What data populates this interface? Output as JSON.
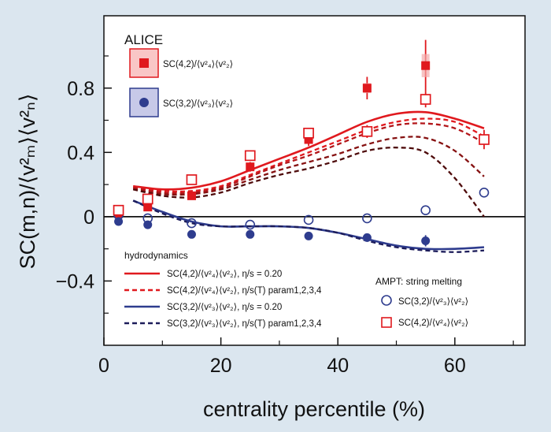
{
  "chart_data": {
    "type": "scatter",
    "xlabel": "centrality percentile (%)",
    "ylabel": "SC(m,n)/⟨v²ₘ⟩⟨v²ₙ⟩",
    "xlim": [
      0,
      72
    ],
    "ylim": [
      -0.8,
      1.25
    ],
    "xticks": [
      "0",
      "20",
      "40",
      "60"
    ],
    "yticks": [
      "−0.4",
      "0",
      "0.4",
      "0.8"
    ],
    "yticks_values": [
      -0.4,
      0,
      0.4,
      0.8
    ],
    "xticks_values": [
      0,
      20,
      40,
      60
    ],
    "colors": {
      "red": "#e0191e",
      "blue": "#2e3c8e",
      "darkred": "#5e0c0c",
      "darkblue": "#1c1c5a",
      "box_red": "#f9c6c6",
      "box_blue": "#c7c9e8"
    },
    "legend_alice": {
      "title": "ALICE",
      "items": [
        {
          "label": "SC(4,2)/⟨v²₄⟩⟨v²₂⟩",
          "color": "#e0191e",
          "marker": "filled-square"
        },
        {
          "label": "SC(3,2)/⟨v²₃⟩⟨v²₂⟩",
          "color": "#2e3c8e",
          "marker": "filled-circle"
        }
      ]
    },
    "legend_hydro": {
      "title": "hydrodynamics",
      "items": [
        {
          "label": "SC(4,2)/⟨v²₄⟩⟨v²₂⟩, η/s = 0.20",
          "color": "#e0191e",
          "style": "solid"
        },
        {
          "label": "SC(4,2)/⟨v²₄⟩⟨v²₂⟩, η/s(T) param1,2,3,4",
          "color": "#e0191e",
          "style": "dashed"
        },
        {
          "label": "SC(3,2)/⟨v²₃⟩⟨v²₂⟩, η/s = 0.20",
          "color": "#2e3c8e",
          "style": "solid"
        },
        {
          "label": "SC(3,2)/⟨v²₃⟩⟨v²₂⟩, η/s(T) param1,2,3,4",
          "color": "#2e3c8e",
          "style": "dashed"
        }
      ]
    },
    "legend_ampt": {
      "title": "AMPT: string melting",
      "items": [
        {
          "label": "SC(3,2)/⟨v²₃⟩⟨v²₂⟩",
          "color": "#2e3c8e",
          "marker": "open-circle"
        },
        {
          "label": "SC(4,2)/⟨v²₄⟩⟨v²₂⟩",
          "color": "#e0191e",
          "marker": "open-square"
        }
      ]
    },
    "series": [
      {
        "name": "ALICE SC(4,2)",
        "kind": "points",
        "marker": "filled-square",
        "color": "#e0191e",
        "x": [
          2.5,
          7.5,
          15,
          25,
          35,
          45,
          55
        ],
        "y": [
          0.02,
          0.06,
          0.13,
          0.31,
          0.48,
          0.8,
          0.94
        ],
        "err": [
          0.015,
          0.015,
          0.02,
          0.03,
          0.04,
          0.07,
          0.16
        ]
      },
      {
        "name": "ALICE SC(3,2)",
        "kind": "points",
        "marker": "filled-circle",
        "color": "#2e3c8e",
        "x": [
          2.5,
          7.5,
          15,
          25,
          35,
          45,
          55
        ],
        "y": [
          -0.03,
          -0.05,
          -0.11,
          -0.11,
          -0.12,
          -0.13,
          -0.15
        ],
        "err": [
          0.005,
          0.005,
          0.008,
          0.01,
          0.012,
          0.02,
          0.035
        ]
      },
      {
        "name": "AMPT SC(3,2)",
        "kind": "points",
        "marker": "open-circle",
        "color": "#2e3c8e",
        "x": [
          2.5,
          7.5,
          15,
          25,
          35,
          45,
          55,
          65
        ],
        "y": [
          0.01,
          -0.01,
          -0.04,
          -0.05,
          -0.02,
          -0.01,
          0.04,
          0.15
        ]
      },
      {
        "name": "AMPT SC(4,2)",
        "kind": "points",
        "marker": "open-square",
        "color": "#e0191e",
        "x": [
          2.5,
          7.5,
          15,
          25,
          35,
          45,
          55,
          65
        ],
        "y": [
          0.04,
          0.11,
          0.23,
          0.38,
          0.52,
          0.53,
          0.73,
          0.48
        ],
        "err": [
          0.01,
          0.01,
          0.02,
          0.02,
          0.03,
          0.04,
          0.05,
          0.06
        ]
      },
      {
        "name": "Hydro SC(4,2) η/s=0.20",
        "kind": "line",
        "style": "solid",
        "color": "#e0191e",
        "x": [
          5,
          10,
          15,
          20,
          25,
          30,
          35,
          40,
          45,
          50,
          55,
          60,
          65
        ],
        "y": [
          0.19,
          0.17,
          0.18,
          0.22,
          0.29,
          0.36,
          0.43,
          0.51,
          0.59,
          0.64,
          0.65,
          0.61,
          0.55
        ]
      },
      {
        "name": "Hydro SC(4,2) param1",
        "kind": "line",
        "style": "dashed",
        "color": "#e0191e",
        "x": [
          5,
          10,
          15,
          20,
          25,
          30,
          35,
          40,
          45,
          50,
          55,
          60,
          65
        ],
        "y": [
          0.18,
          0.16,
          0.16,
          0.19,
          0.26,
          0.33,
          0.4,
          0.47,
          0.54,
          0.59,
          0.61,
          0.59,
          0.5
        ]
      },
      {
        "name": "Hydro SC(4,2) param2",
        "kind": "line",
        "style": "dashed",
        "color": "#b3161a",
        "x": [
          5,
          10,
          15,
          20,
          25,
          30,
          35,
          40,
          45,
          50,
          55,
          60,
          65
        ],
        "y": [
          0.18,
          0.15,
          0.15,
          0.18,
          0.25,
          0.32,
          0.38,
          0.45,
          0.52,
          0.57,
          0.58,
          0.55,
          0.46
        ]
      },
      {
        "name": "Hydro SC(4,2) param3",
        "kind": "line",
        "style": "dashed",
        "color": "#861111",
        "x": [
          5,
          10,
          15,
          20,
          25,
          30,
          35,
          40,
          45,
          50,
          55,
          60,
          65
        ],
        "y": [
          0.17,
          0.14,
          0.14,
          0.17,
          0.23,
          0.29,
          0.34,
          0.39,
          0.45,
          0.49,
          0.49,
          0.41,
          0.25
        ]
      },
      {
        "name": "Hydro SC(4,2) param4",
        "kind": "line",
        "style": "dashed",
        "color": "#4e0b0b",
        "x": [
          5,
          10,
          15,
          20,
          25,
          30,
          35,
          40,
          45,
          50,
          55,
          60,
          65
        ],
        "y": [
          0.17,
          0.13,
          0.12,
          0.15,
          0.21,
          0.26,
          0.3,
          0.35,
          0.41,
          0.43,
          0.4,
          0.24,
          0.0
        ]
      },
      {
        "name": "Hydro SC(3,2) η/s=0.20",
        "kind": "line",
        "style": "solid",
        "color": "#2e3c8e",
        "x": [
          5,
          10,
          15,
          20,
          25,
          30,
          35,
          40,
          45,
          50,
          55,
          60,
          65
        ],
        "y": [
          0.1,
          0.03,
          -0.03,
          -0.06,
          -0.06,
          -0.06,
          -0.07,
          -0.1,
          -0.14,
          -0.18,
          -0.2,
          -0.2,
          -0.19
        ]
      },
      {
        "name": "Hydro SC(3,2) param",
        "kind": "line",
        "style": "dashed",
        "color": "#1c1c5a",
        "x": [
          5,
          10,
          15,
          20,
          25,
          30,
          35,
          40,
          45,
          50,
          55,
          60,
          65
        ],
        "y": [
          0.1,
          0.02,
          -0.04,
          -0.06,
          -0.06,
          -0.06,
          -0.07,
          -0.1,
          -0.15,
          -0.19,
          -0.21,
          -0.22,
          -0.21
        ]
      }
    ]
  }
}
